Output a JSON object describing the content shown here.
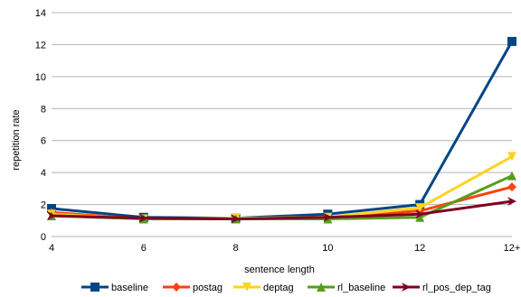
{
  "chart_data": {
    "type": "line",
    "title": "",
    "xlabel": "sentence length",
    "ylabel": "repetition rate",
    "categories": [
      "4",
      "6",
      "8",
      "10",
      "12",
      "12+"
    ],
    "ylim": [
      0,
      14
    ],
    "yticks": [
      0,
      2,
      4,
      6,
      8,
      10,
      12,
      14
    ],
    "grid": true,
    "legend_position": "bottom",
    "series": [
      {
        "name": "baseline",
        "color": "#004586",
        "marker": "square",
        "values": [
          1.75,
          1.2,
          1.15,
          1.4,
          2.0,
          12.2
        ]
      },
      {
        "name": "postag",
        "color": "#ff420e",
        "marker": "diamond",
        "values": [
          1.5,
          1.1,
          1.1,
          1.2,
          1.6,
          3.1
        ]
      },
      {
        "name": "deptag",
        "color": "#ffd320",
        "marker": "triangle-down",
        "values": [
          1.4,
          1.1,
          1.15,
          1.2,
          1.8,
          5.0
        ]
      },
      {
        "name": "rl_baseline",
        "color": "#579d1c",
        "marker": "triangle-up",
        "values": [
          1.3,
          1.1,
          1.1,
          1.1,
          1.2,
          3.8
        ]
      },
      {
        "name": "rl_pos_dep_tag",
        "color": "#7e0021",
        "marker": "arrow",
        "values": [
          1.3,
          1.15,
          1.1,
          1.2,
          1.4,
          2.2
        ]
      }
    ]
  }
}
